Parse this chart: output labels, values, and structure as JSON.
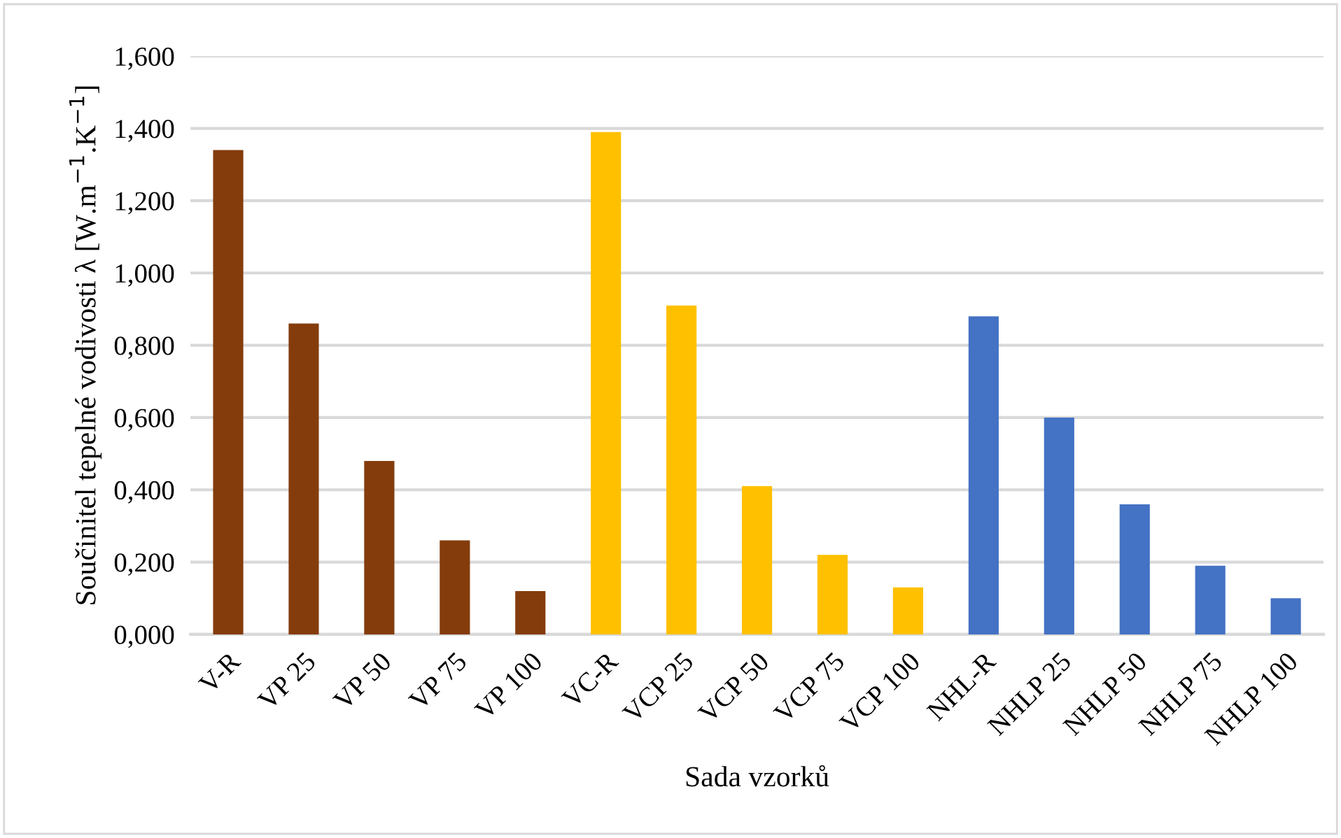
{
  "chart_data": {
    "type": "bar",
    "xlabel": "Sada vzorků",
    "ylabel": "Součinitel tepelné vodivosti λ [W.m$^{−1}$.K$^{−1}$]",
    "categories": [
      "V-R",
      "VP 25",
      "VP 50",
      "VP 75",
      "VP 100",
      "VC-R",
      "VCP 25",
      "VCP 50",
      "VCP 75",
      "VCP 100",
      "NHL-R",
      "NHLP 25",
      "NHLP 50",
      "NHLP 75",
      "NHLP 100"
    ],
    "values": [
      1.34,
      0.86,
      0.48,
      0.26,
      0.12,
      1.39,
      0.91,
      0.41,
      0.22,
      0.13,
      0.88,
      0.6,
      0.36,
      0.19,
      0.1
    ],
    "colors": [
      "#843c0c",
      "#843c0c",
      "#843c0c",
      "#843c0c",
      "#843c0c",
      "#ffc000",
      "#ffc000",
      "#ffc000",
      "#ffc000",
      "#ffc000",
      "#4472c4",
      "#4472c4",
      "#4472c4",
      "#4472c4",
      "#4472c4"
    ],
    "ylim": [
      0,
      1.6
    ],
    "yticks": [
      {
        "value": 0,
        "label": "0,000"
      },
      {
        "value": 0.2,
        "label": "0,200"
      },
      {
        "value": 0.4,
        "label": "0,400"
      },
      {
        "value": 0.6,
        "label": "0,600"
      },
      {
        "value": 0.8,
        "label": "0,800"
      },
      {
        "value": 1.0,
        "label": "1,000"
      },
      {
        "value": 1.2,
        "label": "1,200"
      },
      {
        "value": 1.4,
        "label": "1,400"
      },
      {
        "value": 1.6,
        "label": "1,600"
      }
    ],
    "grid": "y",
    "legend": false
  }
}
